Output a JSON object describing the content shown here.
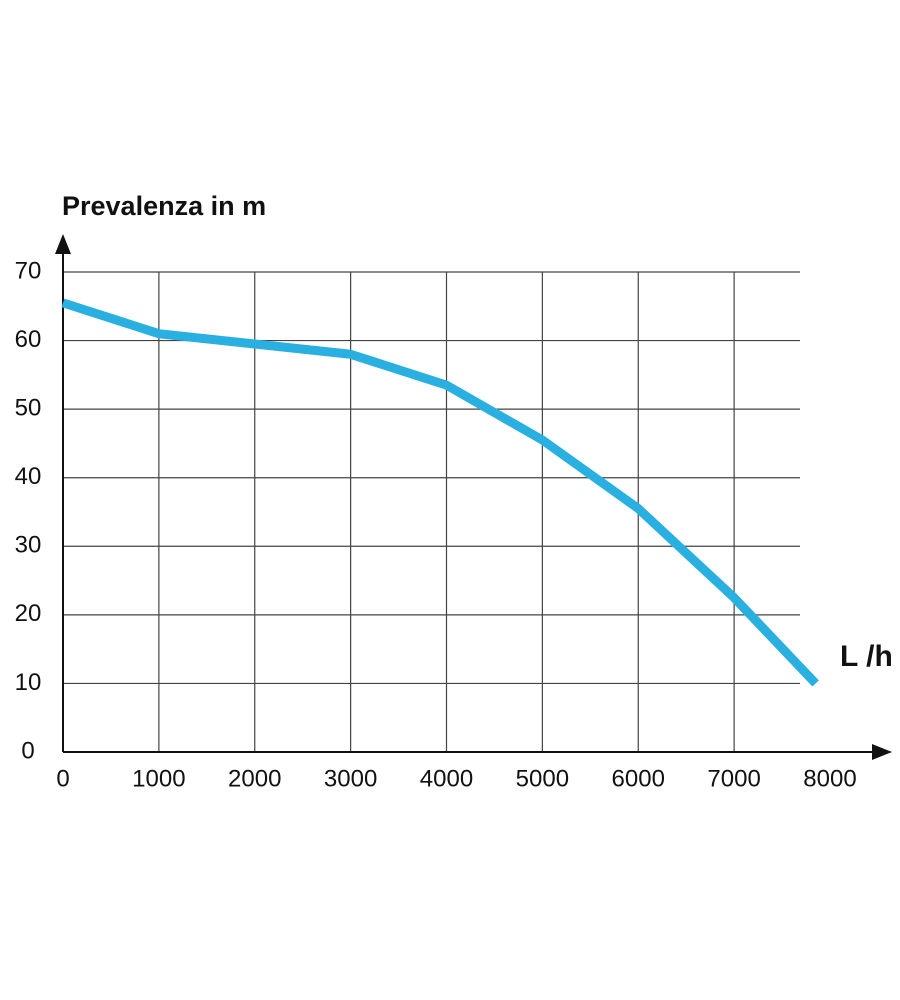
{
  "chart_data": {
    "type": "line",
    "y_label": "Prevalenza in m",
    "x_label": "L /h",
    "x": [
      0,
      1000,
      2000,
      3000,
      4000,
      5000,
      6000,
      7000,
      7850
    ],
    "series": [
      {
        "color": "#2ab0e0",
        "values": [
          65.5,
          61,
          59.5,
          58,
          53.5,
          45.5,
          35.5,
          22.5,
          10
        ]
      }
    ],
    "xlim": [
      0,
      8000
    ],
    "xticks": [
      0,
      1000,
      2000,
      3000,
      4000,
      5000,
      6000,
      7000,
      8000
    ],
    "ylim": [
      0,
      70
    ],
    "yticks": [
      0,
      10,
      20,
      30,
      40,
      50,
      60,
      70
    ],
    "grid": true
  }
}
